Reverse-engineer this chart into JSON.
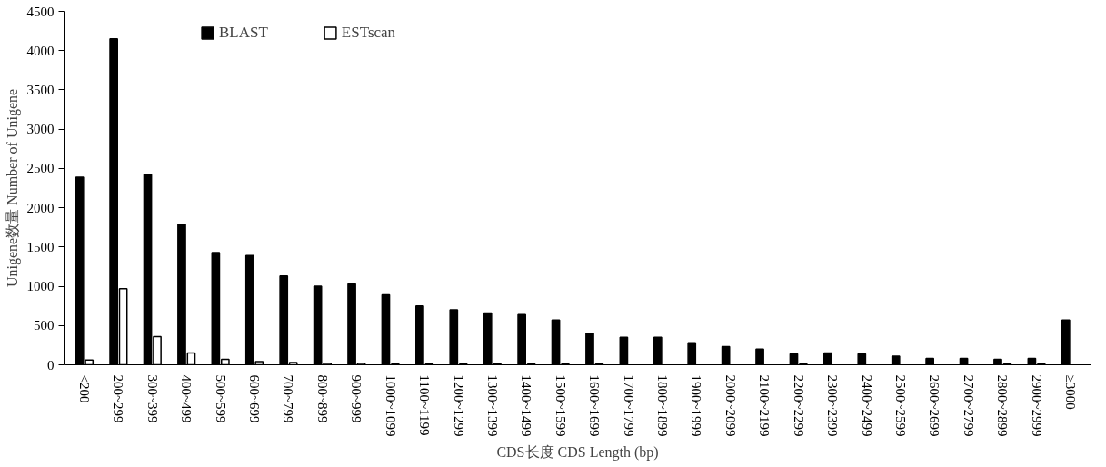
{
  "chart_data": {
    "type": "bar",
    "xlabel": "CDS长度 CDS Length (bp)",
    "ylabel": "Unigene数量 Number of Unigene",
    "categories": [
      "<200",
      "200~299",
      "300~399",
      "400~499",
      "500~599",
      "600~699",
      "700~799",
      "800~899",
      "900~999",
      "1000~1099",
      "1100~1199",
      "1200~1299",
      "1300~1399",
      "1400~1499",
      "1500~1599",
      "1600~1699",
      "1700~1799",
      "1800~1899",
      "1900~1999",
      "2000~2099",
      "2100~2199",
      "2200~2299",
      "2300~2399",
      "2400~2499",
      "2500~2599",
      "2600~2699",
      "2700~2799",
      "2800~2899",
      "2900~2999",
      "≥3000"
    ],
    "series": [
      {
        "name": "BLAST",
        "color": "#000000",
        "values": [
          2390,
          4150,
          2420,
          1790,
          1430,
          1390,
          1130,
          1000,
          1030,
          890,
          750,
          700,
          660,
          640,
          570,
          400,
          350,
          350,
          280,
          230,
          200,
          140,
          150,
          140,
          110,
          80,
          80,
          70,
          80,
          570
        ]
      },
      {
        "name": "ESTscan",
        "color": "#ffffff",
        "values": [
          60,
          970,
          360,
          150,
          70,
          40,
          30,
          20,
          20,
          10,
          10,
          10,
          10,
          10,
          10,
          10,
          0,
          0,
          0,
          0,
          0,
          10,
          0,
          0,
          0,
          0,
          0,
          10,
          10,
          0
        ]
      }
    ],
    "ylim": [
      0,
      4500
    ],
    "yticks": [
      0,
      500,
      1000,
      1500,
      2000,
      2500,
      3000,
      3500,
      4000,
      4500
    ],
    "grid": false,
    "legend": "top left"
  }
}
